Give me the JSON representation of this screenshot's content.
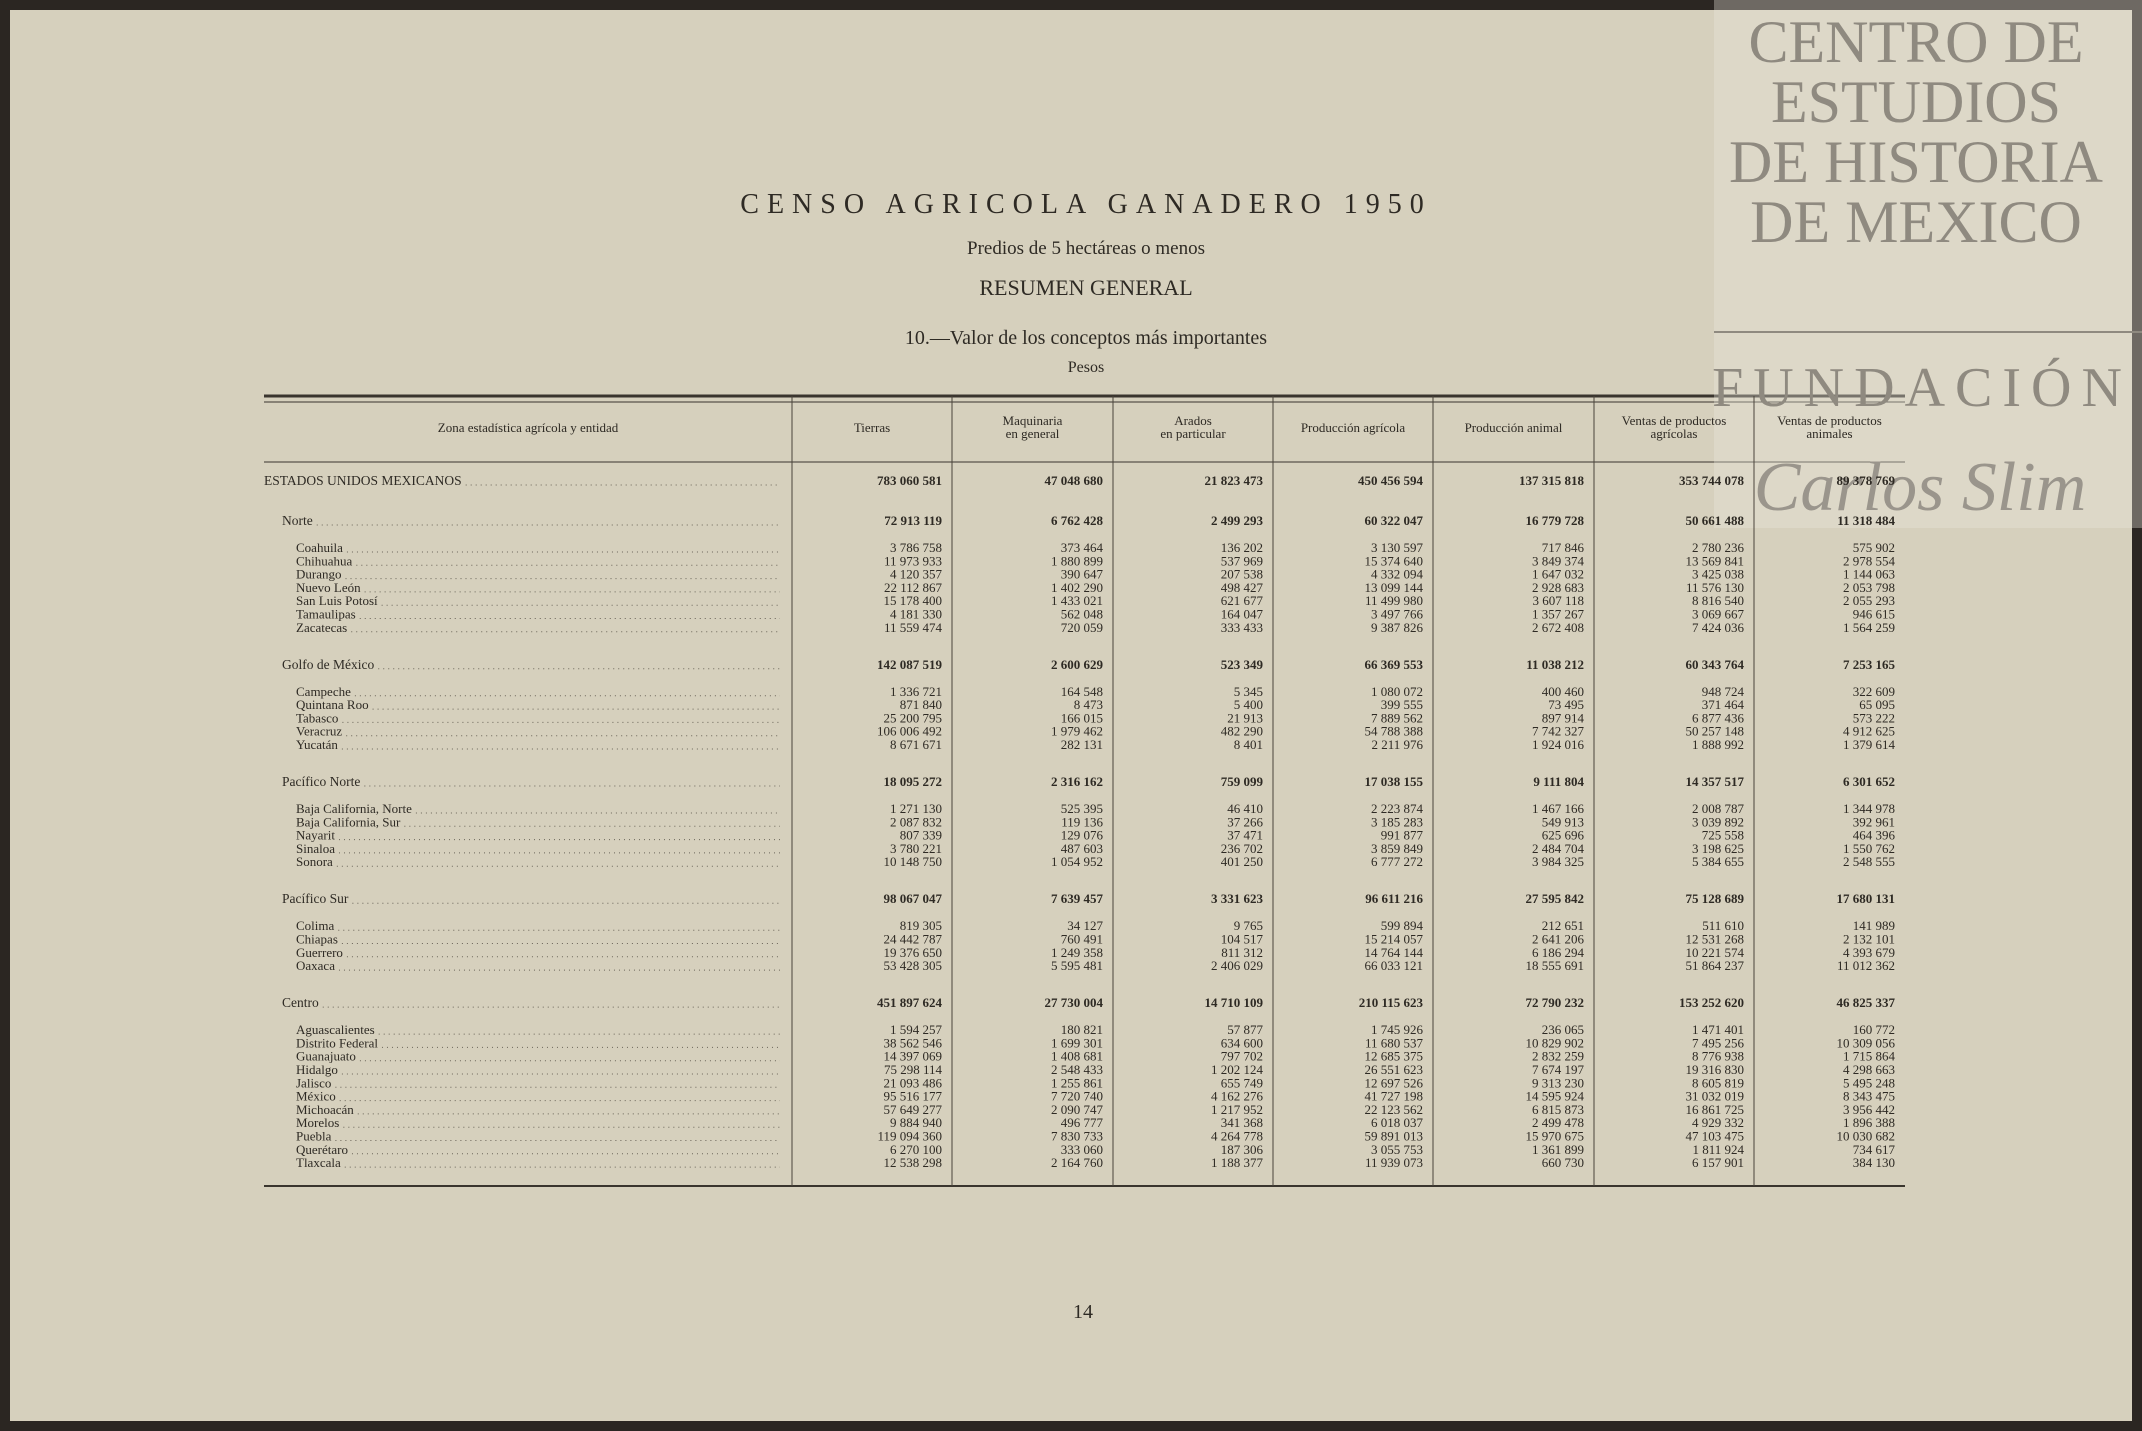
{
  "header": {
    "title": "CENSO AGRICOLA GANADERO 1950",
    "subtitle": "Predios de 5 hectáreas o menos",
    "section": "RESUMEN GENERAL",
    "table_title": "10.—Valor de los conceptos más importantes",
    "unit": "Pesos"
  },
  "table": {
    "columns": [
      [
        "Zona estadística agrícola y entidad"
      ],
      [
        "Tierras"
      ],
      [
        "Maquinaria",
        "en general"
      ],
      [
        "Arados",
        "en particular"
      ],
      [
        "Producción agrícola"
      ],
      [
        "Producción animal"
      ],
      [
        "Ventas de productos",
        "agrícolas"
      ],
      [
        "Ventas de productos",
        "animales"
      ]
    ],
    "total": {
      "name": "ESTADOS UNIDOS MEXICANOS",
      "values": [
        "783 060 581",
        "47 048 680",
        "21 823 473",
        "450 456 594",
        "137 315 818",
        "353 744 078",
        "89 378 769"
      ]
    },
    "zones": [
      {
        "name": "Norte",
        "values": [
          "72 913 119",
          "6 762 428",
          "2 499 293",
          "60 322 047",
          "16 779 728",
          "50 661 488",
          "11 318 484"
        ],
        "states": [
          {
            "name": "Coahuila",
            "values": [
              "3 786 758",
              "373 464",
              "136 202",
              "3 130 597",
              "717 846",
              "2 780 236",
              "575 902"
            ]
          },
          {
            "name": "Chihuahua",
            "values": [
              "11 973 933",
              "1 880 899",
              "537 969",
              "15 374 640",
              "3 849 374",
              "13 569 841",
              "2 978 554"
            ]
          },
          {
            "name": "Durango",
            "values": [
              "4 120 357",
              "390 647",
              "207 538",
              "4 332 094",
              "1 647 032",
              "3 425 038",
              "1 144 063"
            ]
          },
          {
            "name": "Nuevo León",
            "values": [
              "22 112 867",
              "1 402 290",
              "498 427",
              "13 099 144",
              "2 928 683",
              "11 576 130",
              "2 053 798"
            ]
          },
          {
            "name": "San Luis Potosí",
            "values": [
              "15 178 400",
              "1 433 021",
              "621 677",
              "11 499 980",
              "3 607 118",
              "8 816 540",
              "2 055 293"
            ]
          },
          {
            "name": "Tamaulipas",
            "values": [
              "4 181 330",
              "562 048",
              "164 047",
              "3 497 766",
              "1 357 267",
              "3 069 667",
              "946 615"
            ]
          },
          {
            "name": "Zacatecas",
            "values": [
              "11 559 474",
              "720 059",
              "333 433",
              "9 387 826",
              "2 672 408",
              "7 424 036",
              "1 564 259"
            ]
          }
        ]
      },
      {
        "name": "Golfo de México",
        "values": [
          "142 087 519",
          "2 600 629",
          "523 349",
          "66 369 553",
          "11 038 212",
          "60 343 764",
          "7 253 165"
        ],
        "states": [
          {
            "name": "Campeche",
            "values": [
              "1 336 721",
              "164 548",
              "5 345",
              "1 080 072",
              "400 460",
              "948 724",
              "322 609"
            ]
          },
          {
            "name": "Quintana Roo",
            "values": [
              "871 840",
              "8 473",
              "5 400",
              "399 555",
              "73 495",
              "371 464",
              "65 095"
            ]
          },
          {
            "name": "Tabasco",
            "values": [
              "25 200 795",
              "166 015",
              "21 913",
              "7 889 562",
              "897 914",
              "6 877 436",
              "573 222"
            ]
          },
          {
            "name": "Veracruz",
            "values": [
              "106 006 492",
              "1 979 462",
              "482 290",
              "54 788 388",
              "7 742 327",
              "50 257 148",
              "4 912 625"
            ]
          },
          {
            "name": "Yucatán",
            "values": [
              "8 671 671",
              "282 131",
              "8 401",
              "2 211 976",
              "1 924 016",
              "1 888 992",
              "1 379 614"
            ]
          }
        ]
      },
      {
        "name": "Pacífico Norte",
        "values": [
          "18 095 272",
          "2 316 162",
          "759 099",
          "17 038 155",
          "9 111 804",
          "14 357 517",
          "6 301 652"
        ],
        "states": [
          {
            "name": "Baja California, Norte",
            "values": [
              "1 271 130",
              "525 395",
              "46 410",
              "2 223 874",
              "1 467 166",
              "2 008 787",
              "1 344 978"
            ]
          },
          {
            "name": "Baja California, Sur",
            "values": [
              "2 087 832",
              "119 136",
              "37 266",
              "3 185 283",
              "549 913",
              "3 039 892",
              "392 961"
            ]
          },
          {
            "name": "Nayarit",
            "values": [
              "807 339",
              "129 076",
              "37 471",
              "991 877",
              "625 696",
              "725 558",
              "464 396"
            ]
          },
          {
            "name": "Sinaloa",
            "values": [
              "3 780 221",
              "487 603",
              "236 702",
              "3 859 849",
              "2 484 704",
              "3 198 625",
              "1 550 762"
            ]
          },
          {
            "name": "Sonora",
            "values": [
              "10 148 750",
              "1 054 952",
              "401 250",
              "6 777 272",
              "3 984 325",
              "5 384 655",
              "2 548 555"
            ]
          }
        ]
      },
      {
        "name": "Pacífico Sur",
        "values": [
          "98 067 047",
          "7 639 457",
          "3 331 623",
          "96 611 216",
          "27 595 842",
          "75 128 689",
          "17 680 131"
        ],
        "states": [
          {
            "name": "Colima",
            "values": [
              "819 305",
              "34 127",
              "9 765",
              "599 894",
              "212 651",
              "511 610",
              "141 989"
            ]
          },
          {
            "name": "Chiapas",
            "values": [
              "24 442 787",
              "760 491",
              "104 517",
              "15 214 057",
              "2 641 206",
              "12 531 268",
              "2 132 101"
            ]
          },
          {
            "name": "Guerrero",
            "values": [
              "19 376 650",
              "1 249 358",
              "811 312",
              "14 764 144",
              "6 186 294",
              "10 221 574",
              "4 393 679"
            ]
          },
          {
            "name": "Oaxaca",
            "values": [
              "53 428 305",
              "5 595 481",
              "2 406 029",
              "66 033 121",
              "18 555 691",
              "51 864 237",
              "11 012 362"
            ]
          }
        ]
      },
      {
        "name": "Centro",
        "values": [
          "451 897 624",
          "27 730 004",
          "14 710 109",
          "210 115 623",
          "72 790 232",
          "153 252 620",
          "46 825 337"
        ],
        "states": [
          {
            "name": "Aguascalientes",
            "values": [
              "1 594 257",
              "180 821",
              "57 877",
              "1 745 926",
              "236 065",
              "1 471 401",
              "160 772"
            ]
          },
          {
            "name": "Distrito Federal",
            "values": [
              "38 562 546",
              "1 699 301",
              "634 600",
              "11 680 537",
              "10 829 902",
              "7 495 256",
              "10 309 056"
            ]
          },
          {
            "name": "Guanajuato",
            "values": [
              "14 397 069",
              "1 408 681",
              "797 702",
              "12 685 375",
              "2 832 259",
              "8 776 938",
              "1 715 864"
            ]
          },
          {
            "name": "Hidalgo",
            "values": [
              "75 298 114",
              "2 548 433",
              "1 202 124",
              "26 551 623",
              "7 674 197",
              "19 316 830",
              "4 298 663"
            ]
          },
          {
            "name": "Jalisco",
            "values": [
              "21 093 486",
              "1 255 861",
              "655 749",
              "12 697 526",
              "9 313 230",
              "8 605 819",
              "5 495 248"
            ]
          },
          {
            "name": "México",
            "values": [
              "95 516 177",
              "7 720 740",
              "4 162 276",
              "41 727 198",
              "14 595 924",
              "31 032 019",
              "8 343 475"
            ]
          },
          {
            "name": "Michoacán",
            "values": [
              "57 649 277",
              "2 090 747",
              "1 217 952",
              "22 123 562",
              "6 815 873",
              "16 861 725",
              "3 956 442"
            ]
          },
          {
            "name": "Morelos",
            "values": [
              "9 884 940",
              "496 777",
              "341 368",
              "6 018 037",
              "2 499 478",
              "4 929 332",
              "1 896 388"
            ]
          },
          {
            "name": "Puebla",
            "values": [
              "119 094 360",
              "7 830 733",
              "4 264 778",
              "59 891 013",
              "15 970 675",
              "47 103 475",
              "10 030 682"
            ]
          },
          {
            "name": "Querétaro",
            "values": [
              "6 270 100",
              "333 060",
              "187 306",
              "3 055 753",
              "1 361 899",
              "1 811 924",
              "734 617"
            ]
          },
          {
            "name": "Tlaxcala",
            "values": [
              "12 538 298",
              "2 164 760",
              "1 188 377",
              "11 939 073",
              "660 730",
              "6 157 901",
              "384 130"
            ]
          }
        ]
      }
    ]
  },
  "page_number": "14",
  "watermark": {
    "lines": [
      "CENTRO DE",
      "ESTUDIOS",
      "DE HISTORIA",
      "DE MEXICO"
    ],
    "foundation": "FUNDACIÓN",
    "signature": "Carlos Slim"
  }
}
